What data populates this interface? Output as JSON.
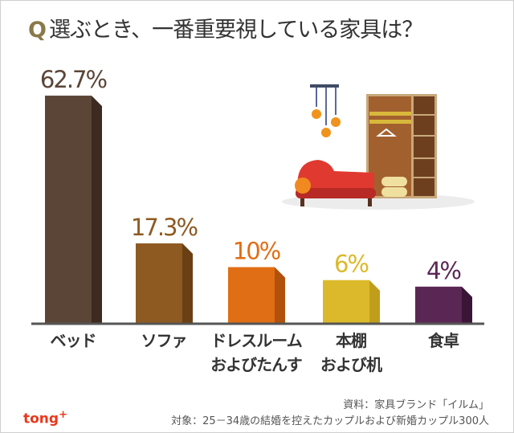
{
  "title": {
    "q": "Q",
    "text": "選ぶとき、一番重要視している家具は？"
  },
  "chart_data": {
    "type": "bar",
    "categories": [
      "ベッド",
      "ソファ",
      "ドレスルーム\nおよびたんす",
      "本棚\nおよび机",
      "食卓"
    ],
    "values": [
      62.7,
      17.3,
      10,
      6,
      4
    ],
    "value_labels": [
      "62.7%",
      "17.3%",
      "10%",
      "6%",
      "4%"
    ],
    "colors": [
      "#5b4537",
      "#8e5a22",
      "#e06e14",
      "#dcb92a",
      "#5a2755"
    ],
    "side_colors": [
      "#3d2b21",
      "#6a3f13",
      "#b0520d",
      "#c09e1c",
      "#3a1536"
    ],
    "grid": false,
    "legend": "none"
  },
  "footer": {
    "source": "資料：家具ブランド「イルム」",
    "target": "対象：25－34歳の結婚を控えたカップルおよび新婚カップル300人",
    "logo": "tong",
    "logo_plus": "+"
  }
}
